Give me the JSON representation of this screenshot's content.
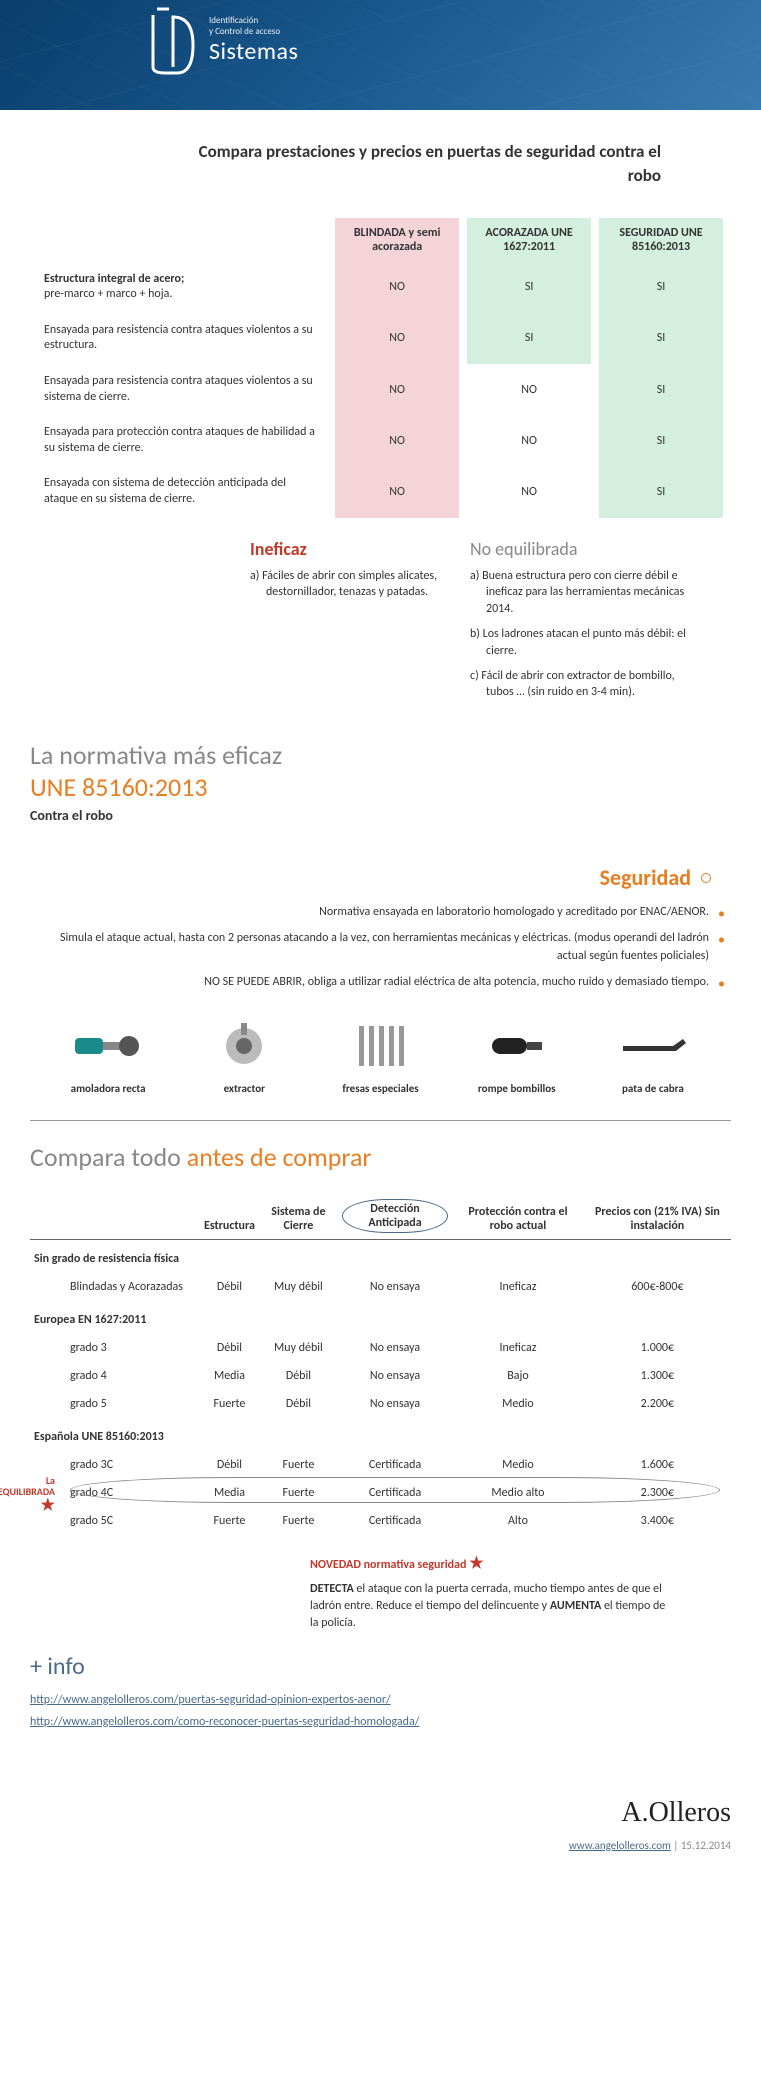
{
  "header": {
    "logo_sub1": "Identificación",
    "logo_sub2": "y Control de acceso",
    "logo_main": "Sistemas"
  },
  "title": "Compara prestaciones y precios en puertas de seguridad contra el robo",
  "cmp_headers": {
    "blindada": "BLINDADA y semi acorazada",
    "acorazada": "ACORAZADA UNE 1627:2011",
    "seguridad": "SEGURIDAD UNE 85160:2013"
  },
  "cmp_rows": [
    {
      "label": "Estructura integral de acero;",
      "sublabel": "pre-marco + marco + hoja.",
      "v": [
        "NO",
        "SI",
        "SI"
      ],
      "cls": [
        "no-pink",
        "si-green",
        "si-green"
      ]
    },
    {
      "label": "Ensayada para resistencia contra ataques violentos a su estructura.",
      "v": [
        "NO",
        "SI",
        "SI"
      ],
      "cls": [
        "no-pink",
        "si-green",
        "si-green"
      ]
    },
    {
      "label": "Ensayada para resistencia contra ataques violentos a su sistema de cierre.",
      "v": [
        "NO",
        "NO",
        "SI"
      ],
      "cls": [
        "no-pink",
        "no-plain",
        "si-green"
      ]
    },
    {
      "label": "Ensayada para protección contra ataques de habilidad a su sistema de cierre.",
      "v": [
        "NO",
        "NO",
        "SI"
      ],
      "cls": [
        "no-pink",
        "no-plain",
        "si-green"
      ]
    },
    {
      "label": "Ensayada con sistema de detección anticipada del ataque en su sistema de cierre.",
      "v": [
        "NO",
        "NO",
        "SI"
      ],
      "cls": [
        "no-pink",
        "no-plain",
        "si-green"
      ]
    }
  ],
  "ineficaz": {
    "title": "Ineficaz",
    "items": [
      "a) Fáciles de abrir con simples alicates, destornillador, tenazas y patadas."
    ]
  },
  "noequil": {
    "title": "No equilibrada",
    "items": [
      "a) Buena estructura pero con cierre débil e ineficaz para las herramientas mecánicas 2014.",
      "b) Los ladrones atacan el punto más débil: el cierre.",
      "c) Fácil de abrir con extractor de bombillo, tubos … (sin ruido en 3-4 min)."
    ]
  },
  "normativa": {
    "h1": "La normativa más eficaz",
    "h2": "UNE 85160:2013",
    "h3": "Contra el robo"
  },
  "seguridad": {
    "title": "Seguridad",
    "items": [
      "Normativa ensayada en laboratorio homologado y acreditado por ENAC/AENOR.",
      "Simula el ataque actual, hasta con 2 personas atacando a la vez, con herramientas mecánicas y eléctricas.\n(modus operandi del ladrón actual según fuentes policiales)",
      "NO SE PUEDE ABRIR, obliga a utilizar radial eléctrica de alta potencia, mucho ruido y demasiado tiempo."
    ]
  },
  "tools": [
    {
      "label": "amoladora recta"
    },
    {
      "label": "extractor"
    },
    {
      "label": "fresas especiales"
    },
    {
      "label": "rompe bombillos"
    },
    {
      "label": "pata de cabra"
    }
  ],
  "compara_h": {
    "grey": "Compara todo ",
    "orange": "antes de comprar"
  },
  "t2_headers": [
    "",
    "Estructura",
    "Sistema de Cierre",
    "Detección Anticipada",
    "Protección contra el robo actual",
    "Precios con (21% IVA) Sin instalación"
  ],
  "t2_sections": [
    {
      "title": "Sin grado de resistencia física",
      "rows": [
        {
          "name": "Blindadas y Acorazadas",
          "v": [
            "Débil",
            "Muy débil",
            "No ensaya",
            "Ineficaz",
            "600€-800€"
          ]
        }
      ]
    },
    {
      "title": "Europea EN 1627:2011",
      "rows": [
        {
          "name": "grado 3",
          "v": [
            "Débil",
            "Muy débil",
            "No ensaya",
            "Ineficaz",
            "1.000€"
          ]
        },
        {
          "name": "grado 4",
          "v": [
            "Media",
            "Débil",
            "No ensaya",
            "Bajo",
            "1.300€"
          ]
        },
        {
          "name": "grado 5",
          "v": [
            "Fuerte",
            "Débil",
            "No ensaya",
            "Medio",
            "2.200€"
          ]
        }
      ]
    },
    {
      "title": "Española UNE 85160:2013",
      "rows": [
        {
          "name": "grado 3C",
          "v": [
            "Débil",
            "Fuerte",
            "Certificada",
            "Medio",
            "1.600€"
          ]
        },
        {
          "name": "grado 4C",
          "v": [
            "Media",
            "Fuerte",
            "Certificada",
            "Medio alto",
            "2.300€"
          ],
          "highlight": true
        },
        {
          "name": "grado 5C",
          "v": [
            "Fuerte",
            "Fuerte",
            "Certificada",
            "Alto",
            "3.400€"
          ]
        }
      ]
    }
  ],
  "lamas": "La más EQUILIBRADA",
  "novedad": "NOVEDAD normativa seguridad",
  "detecta": "DETECTA el ataque con la puerta cerrada, mucho tiempo antes de que el ladrón entre. Reduce el tiempo del delincuente y AUMENTA el tiempo de la policía.",
  "info_h": "+ info",
  "links": [
    "http://www.angelolleros.com/puertas-seguridad-opinion-expertos-aenor/",
    "http://www.angelolleros.com/como-reconocer-puertas-seguridad-homologada/"
  ],
  "footer": {
    "sig": "A.Olleros",
    "url": "www.angelolleros.com",
    "date": "15.12.2014"
  }
}
